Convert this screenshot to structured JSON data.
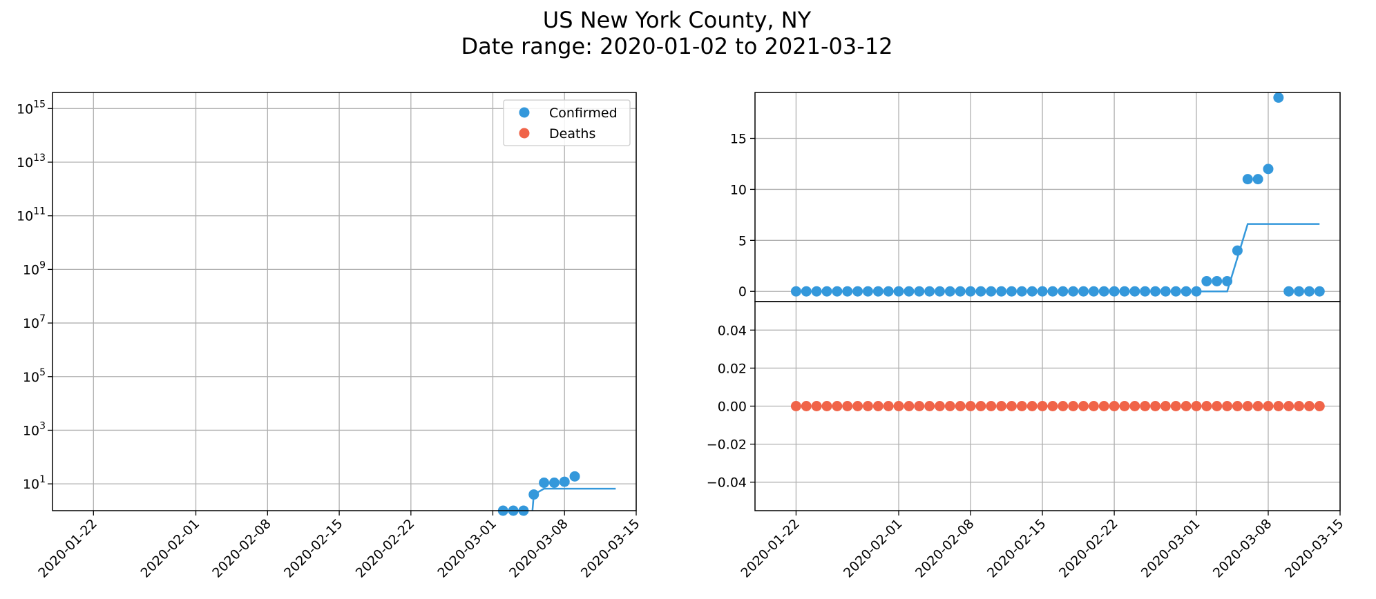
{
  "figure": {
    "title_line1": "US New York County, NY",
    "title_line2": "Date range: 2020-01-02 to 2021-03-12"
  },
  "colors": {
    "confirmed": "#3498db",
    "deaths": "#f06449",
    "grid": "#b0b0b0",
    "axis": "#000000"
  },
  "chart_data": [
    {
      "type": "scatter",
      "panel": "left",
      "yscale": "log",
      "grid": true,
      "legend_placement": "top-right",
      "xlim": [
        "2020-01-18",
        "2020-03-15"
      ],
      "ylim_exponent": [
        0,
        15.6
      ],
      "x_ticks": [
        "2020-01-22",
        "2020-02-01",
        "2020-02-08",
        "2020-02-15",
        "2020-02-22",
        "2020-03-01",
        "2020-03-08",
        "2020-03-15"
      ],
      "y_ticks": [
        {
          "base": "10",
          "exp": "1"
        },
        {
          "base": "10",
          "exp": "3"
        },
        {
          "base": "10",
          "exp": "5"
        },
        {
          "base": "10",
          "exp": "7"
        },
        {
          "base": "10",
          "exp": "9"
        },
        {
          "base": "10",
          "exp": "11"
        },
        {
          "base": "10",
          "exp": "13"
        },
        {
          "base": "10",
          "exp": "15"
        }
      ],
      "series": [
        {
          "name": "Confirmed",
          "points": [
            {
              "x": "2020-03-02",
              "y": 1
            },
            {
              "x": "2020-03-03",
              "y": 1
            },
            {
              "x": "2020-03-04",
              "y": 1
            },
            {
              "x": "2020-03-05",
              "y": 4
            },
            {
              "x": "2020-03-06",
              "y": 11
            },
            {
              "x": "2020-03-07",
              "y": 11
            },
            {
              "x": "2020-03-08",
              "y": 12
            },
            {
              "x": "2020-03-09",
              "y": 19
            }
          ],
          "fit_line": [
            {
              "x": "2020-03-04",
              "y": 0.0001
            },
            {
              "x": "2020-03-05",
              "y": 4
            },
            {
              "x": "2020-03-06",
              "y": 6.6
            },
            {
              "x": "2020-03-13",
              "y": 6.6
            }
          ]
        },
        {
          "name": "Deaths",
          "points": []
        }
      ]
    },
    {
      "type": "scatter",
      "panel": "right-top",
      "grid": true,
      "xlim": [
        "2020-01-18",
        "2020-03-15"
      ],
      "ylim": [
        -1,
        19.5
      ],
      "y_ticks": [
        "0",
        "5",
        "10",
        "15"
      ],
      "series": [
        {
          "name": "Confirmed",
          "x_start": "2020-01-22",
          "values": [
            0,
            0,
            0,
            0,
            0,
            0,
            0,
            0,
            0,
            0,
            0,
            0,
            0,
            0,
            0,
            0,
            0,
            0,
            0,
            0,
            0,
            0,
            0,
            0,
            0,
            0,
            0,
            0,
            0,
            0,
            0,
            0,
            0,
            0,
            0,
            0,
            0,
            0,
            0,
            0,
            1,
            1,
            1,
            4,
            11,
            11,
            12,
            19,
            0,
            0,
            0,
            0
          ],
          "fit_line": [
            {
              "x": "2020-01-22",
              "y": 0
            },
            {
              "x": "2020-03-04",
              "y": 0
            },
            {
              "x": "2020-03-06",
              "y": 6.6
            },
            {
              "x": "2020-03-13",
              "y": 6.6
            }
          ]
        }
      ]
    },
    {
      "type": "scatter",
      "panel": "right-bottom",
      "grid": true,
      "xlim": [
        "2020-01-18",
        "2020-03-15"
      ],
      "ylim": [
        -0.055,
        0.055
      ],
      "x_ticks": [
        "2020-01-22",
        "2020-02-01",
        "2020-02-08",
        "2020-02-15",
        "2020-02-22",
        "2020-03-01",
        "2020-03-08",
        "2020-03-15"
      ],
      "y_ticks": [
        "0.04",
        "0.02",
        "0.00",
        "−0.02",
        "−0.04"
      ],
      "series": [
        {
          "name": "Deaths",
          "x_start": "2020-01-22",
          "values": [
            0,
            0,
            0,
            0,
            0,
            0,
            0,
            0,
            0,
            0,
            0,
            0,
            0,
            0,
            0,
            0,
            0,
            0,
            0,
            0,
            0,
            0,
            0,
            0,
            0,
            0,
            0,
            0,
            0,
            0,
            0,
            0,
            0,
            0,
            0,
            0,
            0,
            0,
            0,
            0,
            0,
            0,
            0,
            0,
            0,
            0,
            0,
            0,
            0,
            0,
            0,
            0
          ]
        }
      ]
    }
  ]
}
